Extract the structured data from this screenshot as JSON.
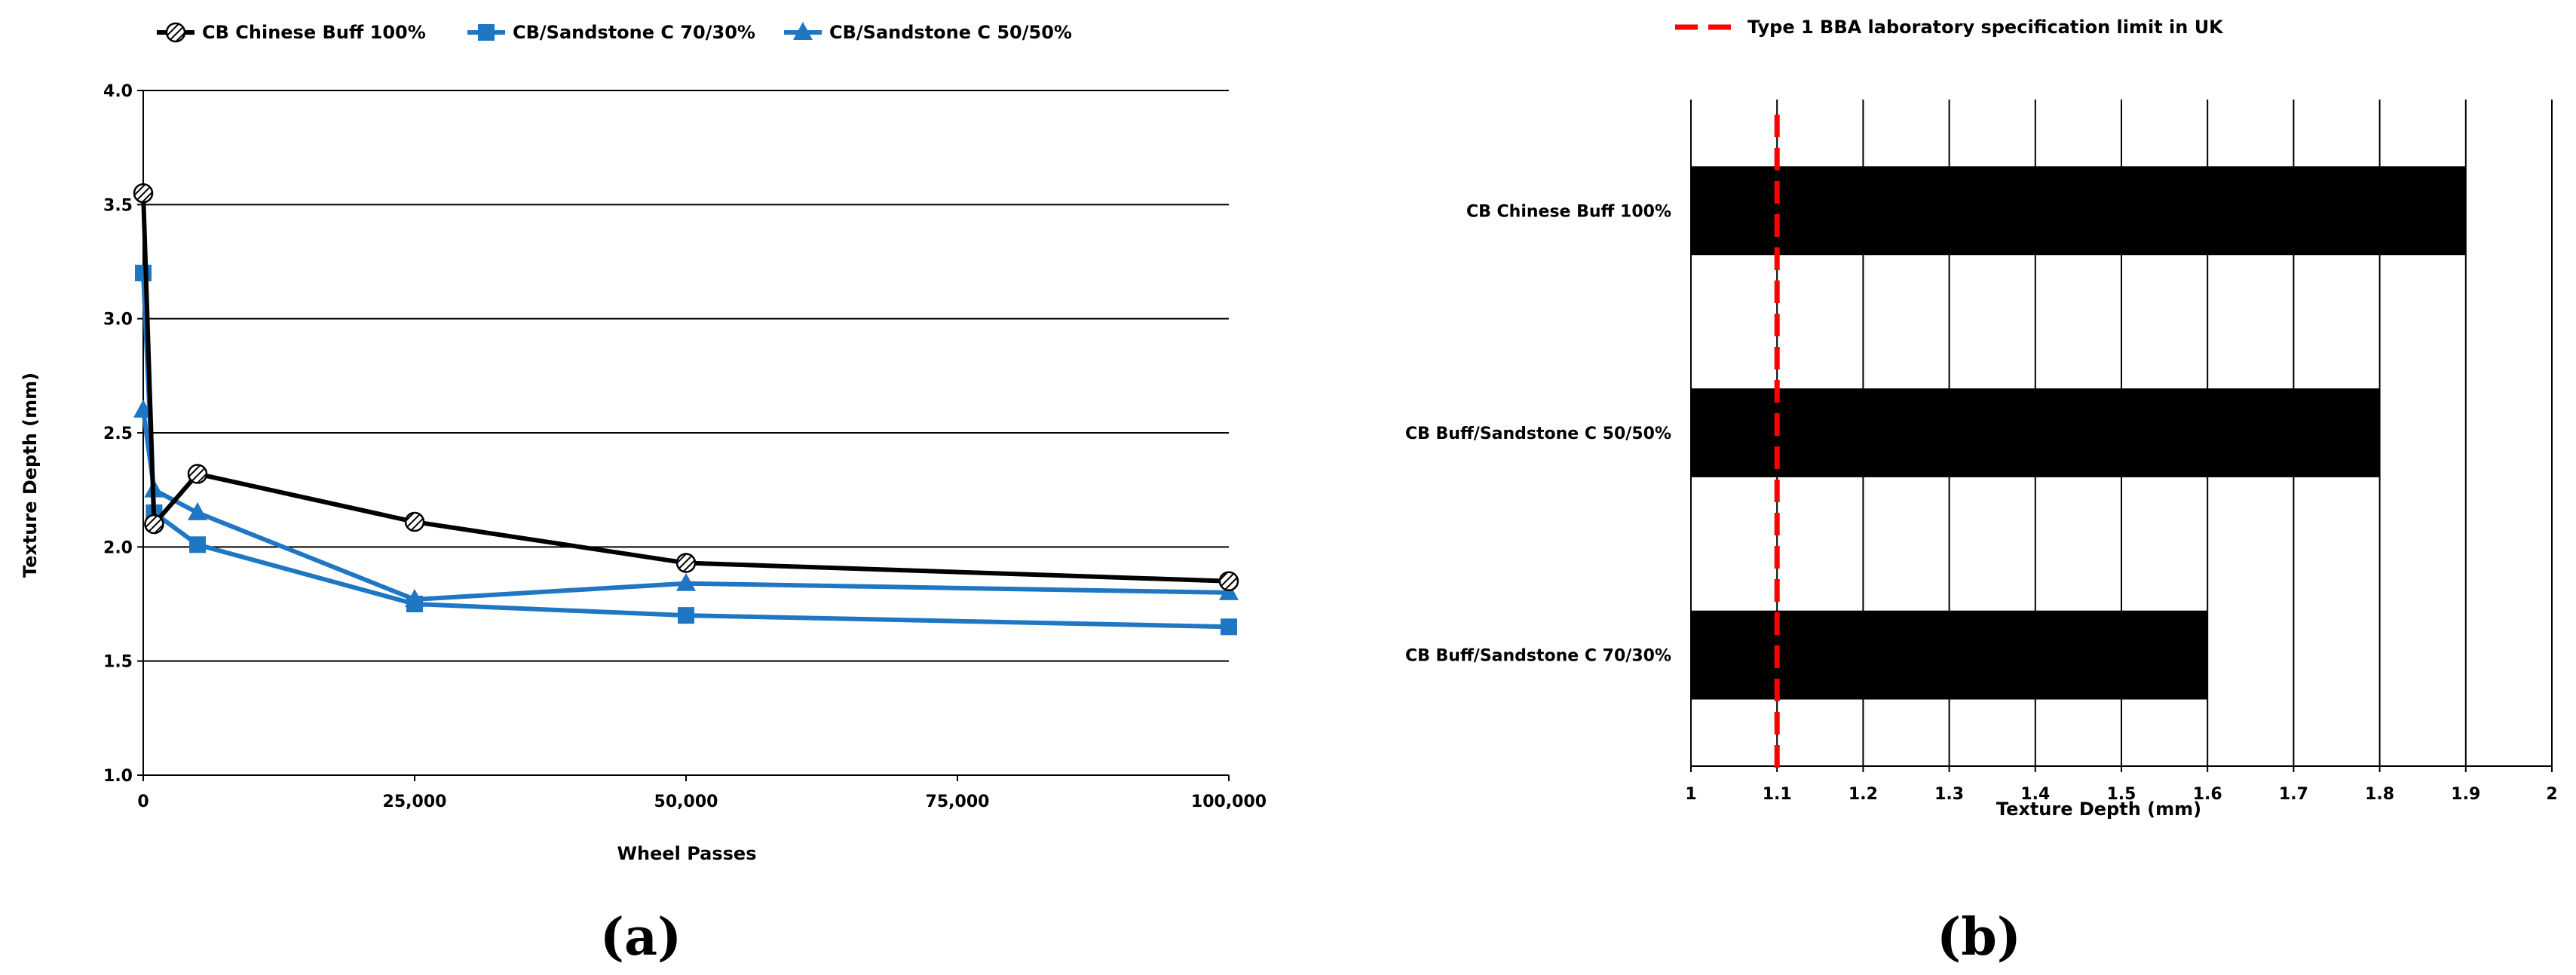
{
  "chart_data": [
    {
      "type": "line",
      "panel_label": "(a)",
      "xlabel": "Wheel Passes",
      "ylabel": "Texture Depth (mm)",
      "xlim": [
        0,
        100000
      ],
      "ylim": [
        1.0,
        4.0
      ],
      "x_ticks": [
        "0",
        "25,000",
        "50,000",
        "75,000",
        "100,000"
      ],
      "y_ticks": [
        "1.0",
        "1.5",
        "2.0",
        "2.5",
        "3.0",
        "3.5",
        "4.0"
      ],
      "grid": "horizontal",
      "legend_position": "top",
      "series": [
        {
          "name": "CB Chinese Buff 100%",
          "color": "#000000",
          "marker": "hatched-circle",
          "x": [
            0,
            1000,
            5000,
            25000,
            50000,
            100000
          ],
          "y": [
            3.55,
            2.1,
            2.32,
            2.11,
            1.93,
            1.85
          ]
        },
        {
          "name": "CB/Sandstone C 70/30%",
          "color": "#1f77c4",
          "marker": "square",
          "x": [
            0,
            1000,
            5000,
            25000,
            50000,
            100000
          ],
          "y": [
            3.2,
            2.15,
            2.01,
            1.75,
            1.7,
            1.65
          ]
        },
        {
          "name": "CB/Sandstone C 50/50%",
          "color": "#1f77c4",
          "marker": "triangle",
          "x": [
            0,
            1000,
            5000,
            25000,
            50000,
            100000
          ],
          "y": [
            2.6,
            2.25,
            2.15,
            1.77,
            1.84,
            1.8
          ]
        }
      ]
    },
    {
      "type": "bar",
      "orientation": "horizontal",
      "panel_label": "(b)",
      "xlabel": "Texture Depth (mm)",
      "xlim": [
        1,
        2
      ],
      "x_ticks": [
        "1",
        "1.1",
        "1.2",
        "1.3",
        "1.4",
        "1.5",
        "1.6",
        "1.7",
        "1.8",
        "1.9",
        "2"
      ],
      "grid": "vertical",
      "bar_color": "#000000",
      "categories": [
        "CB Chinese Buff 100%",
        "CB Buff/Sandstone C 50/50%",
        "CB Buff/Sandstone C 70/30%"
      ],
      "values": [
        1.9,
        1.8,
        1.6
      ],
      "reference_line": {
        "label": "Type 1 BBA laboratory specification limit in UK",
        "value": 1.1,
        "color": "#ff0000",
        "style": "dashed"
      }
    }
  ]
}
